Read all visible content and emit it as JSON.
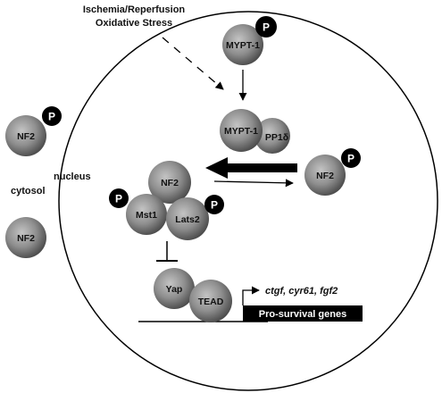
{
  "stimulus": {
    "line1": "Ischemia/Reperfusion",
    "line2": "Oxidative Stress"
  },
  "compartments": {
    "cytosol": "cytosol",
    "nucleus": "nucleus"
  },
  "phospho_label": "P",
  "molecules": {
    "mypt1_top": "MYPT-1",
    "mypt1_complex": "MYPT-1",
    "pp1d": "PP1δ",
    "nf2_cytosol_top": "NF2",
    "nf2_cytosol_bottom": "NF2",
    "nf2_right": "NF2",
    "nf2_complex": "NF2",
    "mst1": "Mst1",
    "lats2": "Lats2",
    "yap": "Yap",
    "tead": "TEAD"
  },
  "genes": {
    "targets": "ctgf, cyr61, fgf2",
    "box_label": "Pro-survival genes"
  },
  "colors": {
    "molecule_fill": "#8a8a8a",
    "phospho_fill": "#000000",
    "gene_box": "#000000",
    "line": "#000000"
  }
}
